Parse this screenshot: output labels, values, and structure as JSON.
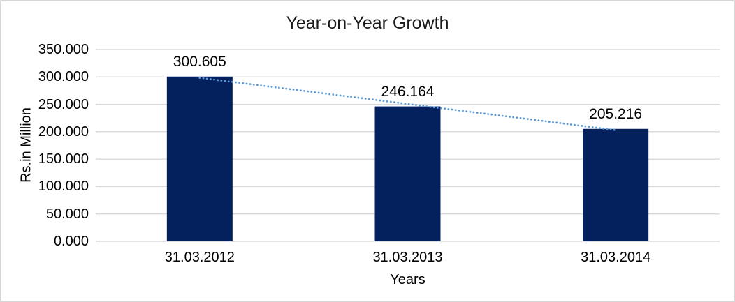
{
  "chart_data": {
    "type": "bar",
    "title": "Year-on-Year Growth",
    "xlabel": "Years",
    "ylabel": "Rs.in Million",
    "categories": [
      "31.03.2012",
      "31.03.2013",
      "31.03.2014"
    ],
    "values": [
      300.605,
      246.164,
      205.216
    ],
    "data_labels": [
      "300.605",
      "246.164",
      "205.216"
    ],
    "ylim": [
      0,
      350
    ],
    "ytick_step": 50,
    "ytick_labels": [
      "0.000",
      "50.000",
      "100.000",
      "150.000",
      "200.000",
      "250.000",
      "300.000",
      "350.000"
    ],
    "grid": true,
    "legend": false,
    "trendline": {
      "type": "linear",
      "style": "dotted",
      "color": "#5B9BD5"
    },
    "colors": {
      "bar": "#04215E",
      "gridline": "#D9D9D9",
      "axis_line": "#D9D9D9",
      "text": "#000000",
      "frame_border": "#D6D6D6",
      "background": "#FFFFFF"
    }
  }
}
